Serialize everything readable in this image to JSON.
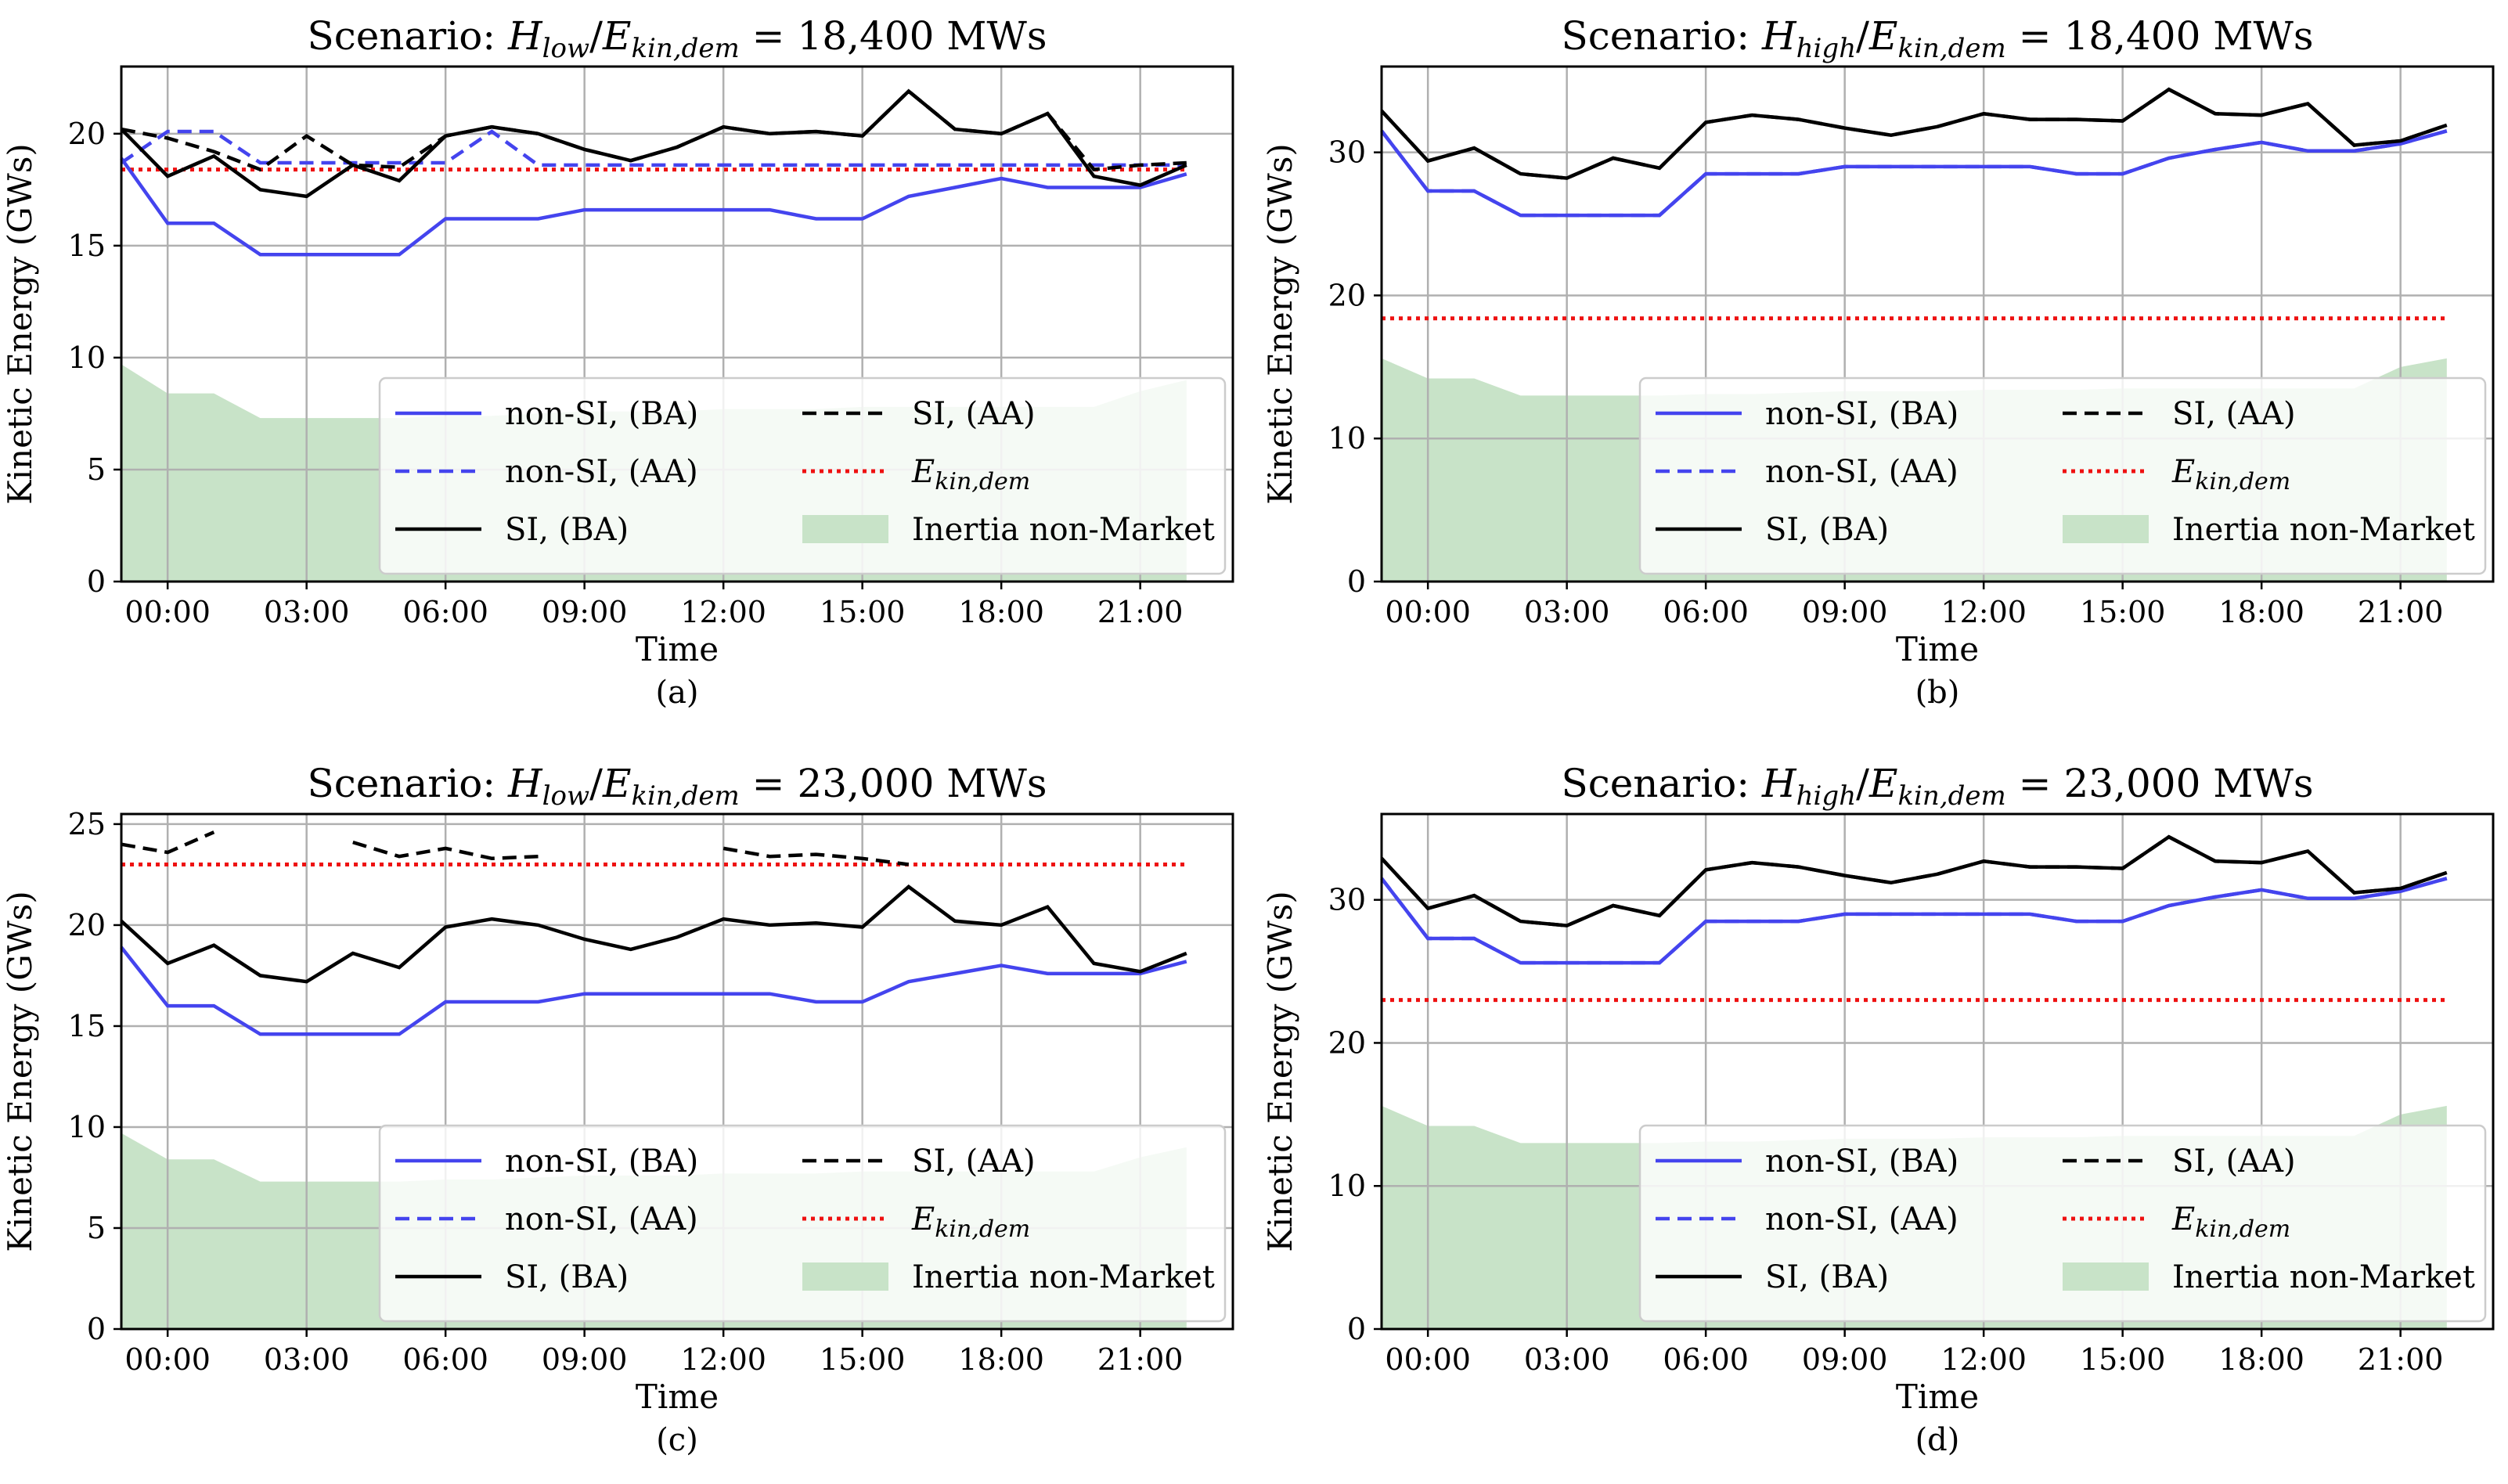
{
  "figure": {
    "background": "#ffffff"
  },
  "series_style": {
    "nonsi_ba": {
      "color": "#4444ee",
      "dash": "solid"
    },
    "nonsi_aa": {
      "color": "#4444ee",
      "dash": "dashed"
    },
    "si_ba": {
      "color": "#000000",
      "dash": "solid"
    },
    "si_aa": {
      "color": "#000000",
      "dash": "dashed"
    },
    "demand": {
      "color": "#ee1111",
      "dash": "dotted"
    },
    "inertia": {
      "color": "#c8e3c8"
    }
  },
  "chart_data": [
    {
      "type": "line",
      "title": "Scenario: H_low / E_kin,dem = 18,400 MWs",
      "title_parts": {
        "prefix": "Scenario:",
        "h": "H",
        "h_sub": "low",
        "slash": "/",
        "e": "E",
        "e_sub": "kin,dem",
        "value": "= 18,400 MWs"
      },
      "subcaption": "(a)",
      "xlabel": "Time",
      "ylabel": "Kinetic Energy (GWs)",
      "xlim": [
        -1,
        23
      ],
      "ylim": [
        0,
        23
      ],
      "xticks": [
        0,
        3,
        6,
        9,
        12,
        15,
        18,
        21
      ],
      "xtick_labels": [
        "00:00",
        "03:00",
        "06:00",
        "09:00",
        "12:00",
        "15:00",
        "18:00",
        "21:00"
      ],
      "yticks": [
        0,
        5,
        10,
        15,
        20
      ],
      "ytick_labels": [
        "0",
        "5",
        "10",
        "15",
        "20"
      ],
      "x": [
        -1,
        0,
        1,
        2,
        3,
        4,
        5,
        6,
        7,
        8,
        9,
        10,
        11,
        12,
        13,
        14,
        15,
        16,
        17,
        18,
        19,
        20,
        21,
        22
      ],
      "series": [
        {
          "key": "inertia",
          "name": "Inertia non-Market",
          "values": [
            9.7,
            8.4,
            8.4,
            7.3,
            7.3,
            7.3,
            7.3,
            7.4,
            7.4,
            7.5,
            7.6,
            7.6,
            7.6,
            7.7,
            7.7,
            7.7,
            7.8,
            7.8,
            7.8,
            7.8,
            7.8,
            7.8,
            8.5,
            9.0
          ]
        },
        {
          "key": "nonsi_aa",
          "name": "non-SI, (AA)",
          "values": [
            18.7,
            20.1,
            20.1,
            18.7,
            18.7,
            18.7,
            18.7,
            18.7,
            20.1,
            18.6,
            18.6,
            18.6,
            18.6,
            18.6,
            18.6,
            18.6,
            18.6,
            18.6,
            18.6,
            18.6,
            18.6,
            18.6,
            18.6,
            18.6
          ]
        },
        {
          "key": "si_aa",
          "name": "SI, (AA)",
          "values": [
            20.2,
            19.8,
            19.2,
            18.4,
            19.9,
            18.6,
            18.5,
            19.9,
            20.3,
            20.0,
            19.3,
            18.8,
            19.4,
            20.3,
            20.0,
            20.1,
            19.9,
            21.9,
            20.2,
            20.0,
            20.9,
            18.4,
            18.6,
            18.7
          ]
        },
        {
          "key": "nonsi_ba",
          "name": "non-SI, (BA)",
          "values": [
            18.9,
            16.0,
            16.0,
            14.6,
            14.6,
            14.6,
            14.6,
            16.2,
            16.2,
            16.2,
            16.6,
            16.6,
            16.6,
            16.6,
            16.6,
            16.2,
            16.2,
            17.2,
            17.6,
            18.0,
            17.6,
            17.6,
            17.6,
            18.2
          ]
        },
        {
          "key": "si_ba",
          "name": "SI, (BA)",
          "values": [
            20.2,
            18.1,
            19.0,
            17.5,
            17.2,
            18.6,
            17.9,
            19.9,
            20.3,
            20.0,
            19.3,
            18.8,
            19.4,
            20.3,
            20.0,
            20.1,
            19.9,
            21.9,
            20.2,
            20.0,
            20.9,
            18.1,
            17.7,
            18.6
          ]
        },
        {
          "key": "demand",
          "name": "E_kin,dem",
          "values": [
            18.4,
            18.4,
            18.4,
            18.4,
            18.4,
            18.4,
            18.4,
            18.4,
            18.4,
            18.4,
            18.4,
            18.4,
            18.4,
            18.4,
            18.4,
            18.4,
            18.4,
            18.4,
            18.4,
            18.4,
            18.4,
            18.4,
            18.4,
            18.4
          ]
        }
      ],
      "legend_position": "lower-right"
    },
    {
      "type": "line",
      "title": "Scenario: H_high / E_kin,dem = 18,400 MWs",
      "title_parts": {
        "prefix": "Scenario:",
        "h": "H",
        "h_sub": "high",
        "slash": "/",
        "e": "E",
        "e_sub": "kin,dem",
        "value": "= 18,400 MWs"
      },
      "subcaption": "(b)",
      "xlabel": "Time",
      "ylabel": "Kinetic Energy (GWs)",
      "xlim": [
        -1,
        23
      ],
      "ylim": [
        0,
        36
      ],
      "xticks": [
        0,
        3,
        6,
        9,
        12,
        15,
        18,
        21
      ],
      "xtick_labels": [
        "00:00",
        "03:00",
        "06:00",
        "09:00",
        "12:00",
        "15:00",
        "18:00",
        "21:00"
      ],
      "yticks": [
        0,
        10,
        20,
        30
      ],
      "ytick_labels": [
        "0",
        "10",
        "20",
        "30"
      ],
      "x": [
        -1,
        0,
        1,
        2,
        3,
        4,
        5,
        6,
        7,
        8,
        9,
        10,
        11,
        12,
        13,
        14,
        15,
        16,
        17,
        18,
        19,
        20,
        21,
        22
      ],
      "series": [
        {
          "key": "inertia",
          "name": "Inertia non-Market",
          "values": [
            15.6,
            14.2,
            14.2,
            13.0,
            13.0,
            13.0,
            13.0,
            13.1,
            13.1,
            13.2,
            13.3,
            13.3,
            13.3,
            13.4,
            13.4,
            13.4,
            13.5,
            13.5,
            13.5,
            13.5,
            13.5,
            13.5,
            15.0,
            15.6
          ]
        },
        {
          "key": "nonsi_aa",
          "name": "non-SI, (AA)",
          "values": [
            31.5,
            27.3,
            27.3,
            25.6,
            25.6,
            25.6,
            25.6,
            28.5,
            28.5,
            28.5,
            29.0,
            29.0,
            29.0,
            29.0,
            29.0,
            28.5,
            28.5,
            29.6,
            30.2,
            30.7,
            30.1,
            30.1,
            30.6,
            31.5
          ]
        },
        {
          "key": "si_aa",
          "name": "SI, (AA)",
          "values": [
            32.9,
            29.4,
            30.3,
            28.5,
            28.2,
            29.6,
            28.9,
            32.1,
            32.6,
            32.3,
            31.7,
            31.2,
            31.8,
            32.7,
            32.3,
            32.3,
            32.2,
            34.4,
            32.7,
            32.6,
            33.4,
            30.5,
            30.8,
            31.9
          ]
        },
        {
          "key": "nonsi_ba",
          "name": "non-SI, (BA)",
          "values": [
            31.5,
            27.3,
            27.3,
            25.6,
            25.6,
            25.6,
            25.6,
            28.5,
            28.5,
            28.5,
            29.0,
            29.0,
            29.0,
            29.0,
            29.0,
            28.5,
            28.5,
            29.6,
            30.2,
            30.7,
            30.1,
            30.1,
            30.6,
            31.5
          ]
        },
        {
          "key": "si_ba",
          "name": "SI, (BA)",
          "values": [
            32.9,
            29.4,
            30.3,
            28.5,
            28.2,
            29.6,
            28.9,
            32.1,
            32.6,
            32.3,
            31.7,
            31.2,
            31.8,
            32.7,
            32.3,
            32.3,
            32.2,
            34.4,
            32.7,
            32.6,
            33.4,
            30.5,
            30.8,
            31.9
          ]
        },
        {
          "key": "demand",
          "name": "E_kin,dem",
          "values": [
            18.4,
            18.4,
            18.4,
            18.4,
            18.4,
            18.4,
            18.4,
            18.4,
            18.4,
            18.4,
            18.4,
            18.4,
            18.4,
            18.4,
            18.4,
            18.4,
            18.4,
            18.4,
            18.4,
            18.4,
            18.4,
            18.4,
            18.4,
            18.4
          ]
        }
      ],
      "legend_position": "lower-right"
    },
    {
      "type": "line",
      "title": "Scenario: H_low / E_kin,dem = 23,000 MWs",
      "title_parts": {
        "prefix": "Scenario:",
        "h": "H",
        "h_sub": "low",
        "slash": "/",
        "e": "E",
        "e_sub": "kin,dem",
        "value": "= 23,000 MWs"
      },
      "subcaption": "(c)",
      "xlabel": "Time",
      "ylabel": "Kinetic Energy (GWs)",
      "xlim": [
        -1,
        23
      ],
      "ylim": [
        0,
        25.5
      ],
      "xticks": [
        0,
        3,
        6,
        9,
        12,
        15,
        18,
        21
      ],
      "xtick_labels": [
        "00:00",
        "03:00",
        "06:00",
        "09:00",
        "12:00",
        "15:00",
        "18:00",
        "21:00"
      ],
      "yticks": [
        0,
        5,
        10,
        15,
        20,
        25
      ],
      "ytick_labels": [
        "0",
        "5",
        "10",
        "15",
        "20",
        "25"
      ],
      "x": [
        -1,
        0,
        1,
        2,
        3,
        4,
        5,
        6,
        7,
        8,
        9,
        10,
        11,
        12,
        13,
        14,
        15,
        16,
        17,
        18,
        19,
        20,
        21,
        22
      ],
      "series": [
        {
          "key": "inertia",
          "name": "Inertia non-Market",
          "values": [
            9.7,
            8.4,
            8.4,
            7.3,
            7.3,
            7.3,
            7.3,
            7.4,
            7.4,
            7.5,
            7.6,
            7.6,
            7.6,
            7.7,
            7.7,
            7.7,
            7.8,
            7.8,
            7.8,
            7.8,
            7.8,
            7.8,
            8.5,
            9.0
          ]
        },
        {
          "key": "nonsi_aa",
          "name": "non-SI, (AA)",
          "values": [
            null,
            null,
            null,
            null,
            null,
            null,
            null,
            null,
            null,
            null,
            null,
            null,
            null,
            null,
            null,
            null,
            null,
            null,
            null,
            null,
            null,
            null,
            null,
            null
          ]
        },
        {
          "key": "si_aa",
          "name": "SI, (AA)",
          "values": [
            24.0,
            23.6,
            24.6,
            null,
            null,
            24.1,
            23.4,
            23.8,
            23.3,
            23.4,
            null,
            null,
            null,
            23.8,
            23.4,
            23.5,
            23.3,
            23.0,
            null,
            null,
            null,
            null,
            null,
            null
          ]
        },
        {
          "key": "nonsi_ba",
          "name": "non-SI, (BA)",
          "values": [
            18.9,
            16.0,
            16.0,
            14.6,
            14.6,
            14.6,
            14.6,
            16.2,
            16.2,
            16.2,
            16.6,
            16.6,
            16.6,
            16.6,
            16.6,
            16.2,
            16.2,
            17.2,
            17.6,
            18.0,
            17.6,
            17.6,
            17.6,
            18.2
          ]
        },
        {
          "key": "si_ba",
          "name": "SI, (BA)",
          "values": [
            20.2,
            18.1,
            19.0,
            17.5,
            17.2,
            18.6,
            17.9,
            19.9,
            20.3,
            20.0,
            19.3,
            18.8,
            19.4,
            20.3,
            20.0,
            20.1,
            19.9,
            21.9,
            20.2,
            20.0,
            20.9,
            18.1,
            17.7,
            18.6
          ]
        },
        {
          "key": "demand",
          "name": "E_kin,dem",
          "values": [
            23.0,
            23.0,
            23.0,
            23.0,
            23.0,
            23.0,
            23.0,
            23.0,
            23.0,
            23.0,
            23.0,
            23.0,
            23.0,
            23.0,
            23.0,
            23.0,
            23.0,
            23.0,
            23.0,
            23.0,
            23.0,
            23.0,
            23.0,
            23.0
          ]
        }
      ],
      "legend_position": "lower-right"
    },
    {
      "type": "line",
      "title": "Scenario: H_high / E_kin,dem = 23,000 MWs",
      "title_parts": {
        "prefix": "Scenario:",
        "h": "H",
        "h_sub": "high",
        "slash": "/",
        "e": "E",
        "e_sub": "kin,dem",
        "value": "= 23,000 MWs"
      },
      "subcaption": "(d)",
      "xlabel": "Time",
      "ylabel": "Kinetic Energy (GWs)",
      "xlim": [
        -1,
        23
      ],
      "ylim": [
        0,
        36
      ],
      "xticks": [
        0,
        3,
        6,
        9,
        12,
        15,
        18,
        21
      ],
      "xtick_labels": [
        "00:00",
        "03:00",
        "06:00",
        "09:00",
        "12:00",
        "15:00",
        "18:00",
        "21:00"
      ],
      "yticks": [
        0,
        10,
        20,
        30
      ],
      "ytick_labels": [
        "0",
        "10",
        "20",
        "30"
      ],
      "x": [
        -1,
        0,
        1,
        2,
        3,
        4,
        5,
        6,
        7,
        8,
        9,
        10,
        11,
        12,
        13,
        14,
        15,
        16,
        17,
        18,
        19,
        20,
        21,
        22
      ],
      "series": [
        {
          "key": "inertia",
          "name": "Inertia non-Market",
          "values": [
            15.6,
            14.2,
            14.2,
            13.0,
            13.0,
            13.0,
            13.0,
            13.1,
            13.1,
            13.2,
            13.3,
            13.3,
            13.3,
            13.4,
            13.4,
            13.4,
            13.5,
            13.5,
            13.5,
            13.5,
            13.5,
            13.5,
            15.0,
            15.6
          ]
        },
        {
          "key": "nonsi_aa",
          "name": "non-SI, (AA)",
          "values": [
            31.5,
            27.3,
            27.3,
            25.6,
            25.6,
            25.6,
            25.6,
            28.5,
            28.5,
            28.5,
            29.0,
            29.0,
            29.0,
            29.0,
            29.0,
            28.5,
            28.5,
            29.6,
            30.2,
            30.7,
            30.1,
            30.1,
            30.6,
            31.5
          ]
        },
        {
          "key": "si_aa",
          "name": "SI, (AA)",
          "values": [
            32.9,
            29.4,
            30.3,
            28.5,
            28.2,
            29.6,
            28.9,
            32.1,
            32.6,
            32.3,
            31.7,
            31.2,
            31.8,
            32.7,
            32.3,
            32.3,
            32.2,
            34.4,
            32.7,
            32.6,
            33.4,
            30.5,
            30.8,
            31.9
          ]
        },
        {
          "key": "nonsi_ba",
          "name": "non-SI, (BA)",
          "values": [
            31.5,
            27.3,
            27.3,
            25.6,
            25.6,
            25.6,
            25.6,
            28.5,
            28.5,
            28.5,
            29.0,
            29.0,
            29.0,
            29.0,
            29.0,
            28.5,
            28.5,
            29.6,
            30.2,
            30.7,
            30.1,
            30.1,
            30.6,
            31.5
          ]
        },
        {
          "key": "si_ba",
          "name": "SI, (BA)",
          "values": [
            32.9,
            29.4,
            30.3,
            28.5,
            28.2,
            29.6,
            28.9,
            32.1,
            32.6,
            32.3,
            31.7,
            31.2,
            31.8,
            32.7,
            32.3,
            32.3,
            32.2,
            34.4,
            32.7,
            32.6,
            33.4,
            30.5,
            30.8,
            31.9
          ]
        },
        {
          "key": "demand",
          "name": "E_kin,dem",
          "values": [
            23.0,
            23.0,
            23.0,
            23.0,
            23.0,
            23.0,
            23.0,
            23.0,
            23.0,
            23.0,
            23.0,
            23.0,
            23.0,
            23.0,
            23.0,
            23.0,
            23.0,
            23.0,
            23.0,
            23.0,
            23.0,
            23.0,
            23.0,
            23.0
          ]
        }
      ],
      "legend_position": "lower-right"
    }
  ],
  "legend": {
    "left": [
      {
        "key": "nonsi_ba",
        "label": "non-SI, (BA)"
      },
      {
        "key": "nonsi_aa",
        "label": "non-SI, (AA)"
      },
      {
        "key": "si_ba",
        "label": "SI, (BA)"
      }
    ],
    "right": [
      {
        "key": "si_aa",
        "label": "SI, (AA)"
      },
      {
        "key": "demand",
        "label_main": "E",
        "label_sub": "kin,dem"
      },
      {
        "key": "inertia",
        "label": "Inertia non-Market"
      }
    ]
  }
}
